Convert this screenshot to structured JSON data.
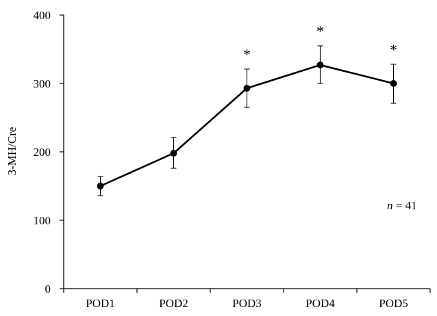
{
  "chart_data": {
    "type": "line",
    "title": "",
    "xlabel": "",
    "ylabel": "3-MH/Cre",
    "ylim": [
      0,
      400
    ],
    "yticks": [
      0,
      100,
      200,
      300,
      400
    ],
    "categories": [
      "POD1",
      "POD2",
      "POD3",
      "POD4",
      "POD5"
    ],
    "series": [
      {
        "name": "3-MH/Cre",
        "values": [
          150,
          198,
          293,
          327,
          300
        ],
        "error_upper": [
          164,
          221,
          321,
          355,
          328
        ],
        "error_lower": [
          136,
          176,
          265,
          300,
          271
        ],
        "significance": [
          "",
          "",
          "*",
          "*",
          "*"
        ]
      }
    ],
    "annotation": {
      "italic_part": "n",
      "rest": " = 41"
    }
  }
}
